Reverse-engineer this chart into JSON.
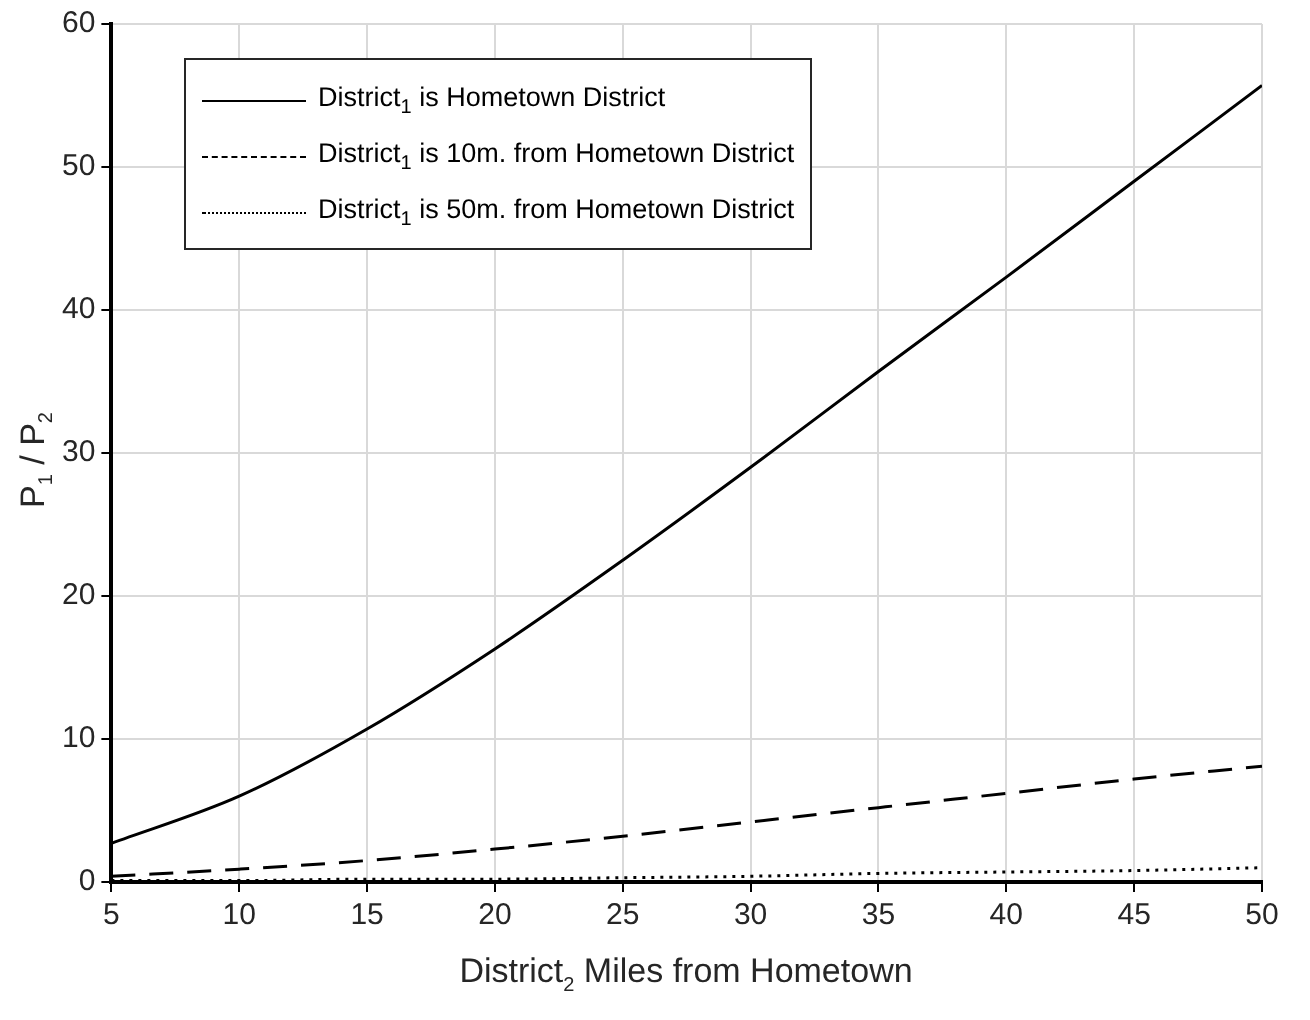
{
  "chart_data": {
    "type": "line",
    "xlabel": "District$_{2}$ Miles from Hometown",
    "ylabel": "P$_{1}$ / P$_{2}$",
    "x": [
      5,
      10,
      15,
      20,
      25,
      30,
      35,
      40,
      45,
      50
    ],
    "series": [
      {
        "name": "District$_{1}$ is Hometown District",
        "color": "#000000",
        "line_style": "solid",
        "values": [
          2.7,
          6.0,
          10.7,
          16.3,
          22.5,
          29.0,
          35.7,
          42.3,
          49.0,
          55.7
        ]
      },
      {
        "name": "District$_{1}$ is 10m. from Hometown District",
        "color": "#000000",
        "line_style": "dashed",
        "values": [
          0.4,
          0.9,
          1.5,
          2.3,
          3.2,
          4.2,
          5.2,
          6.2,
          7.2,
          8.1
        ]
      },
      {
        "name": "District$_{1}$ is 50m. from Hometown District",
        "color": "#000000",
        "line_style": "dotted",
        "values": [
          0.1,
          0.1,
          0.2,
          0.2,
          0.3,
          0.4,
          0.6,
          0.7,
          0.8,
          1.0
        ]
      }
    ],
    "xlim": [
      5,
      50
    ],
    "xticks": [
      5,
      10,
      15,
      20,
      25,
      30,
      35,
      40,
      45,
      50
    ],
    "ylim": [
      0,
      60
    ],
    "yticks": [
      0,
      10,
      20,
      30,
      40,
      50,
      60
    ],
    "grid": true,
    "legend": "top left",
    "marker": "none"
  }
}
